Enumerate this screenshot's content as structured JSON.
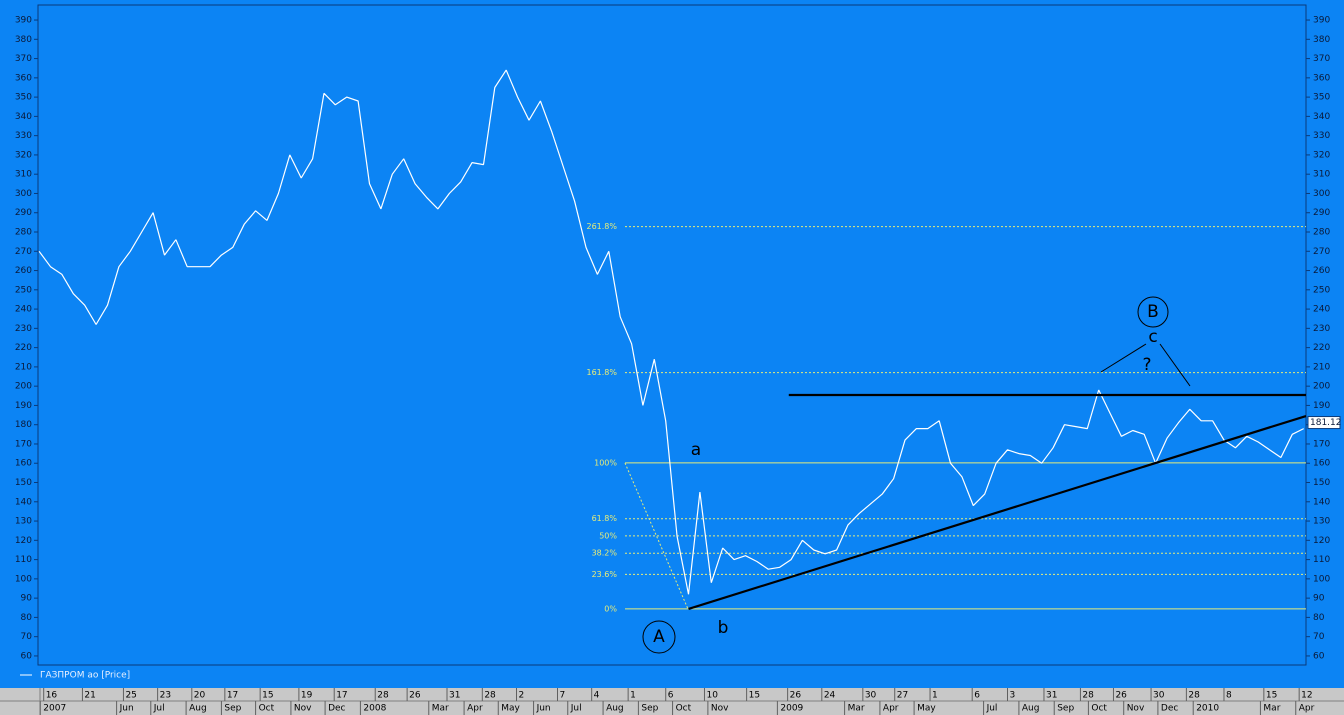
{
  "chart_data": {
    "type": "line",
    "x": [
      "2007-03-25",
      "2007-04-04",
      "2007-04-14",
      "2007-04-24",
      "2007-05-04",
      "2007-05-14",
      "2007-05-24",
      "2007-06-03",
      "2007-06-13",
      "2007-06-23",
      "2007-07-03",
      "2007-07-13",
      "2007-07-23",
      "2007-08-02",
      "2007-08-12",
      "2007-08-22",
      "2007-09-01",
      "2007-09-11",
      "2007-09-21",
      "2007-10-01",
      "2007-10-11",
      "2007-10-21",
      "2007-10-31",
      "2007-11-10",
      "2007-11-20",
      "2007-11-30",
      "2007-12-10",
      "2007-12-20",
      "2007-12-30",
      "2008-01-09",
      "2008-01-19",
      "2008-01-29",
      "2008-02-08",
      "2008-02-18",
      "2008-02-28",
      "2008-03-09",
      "2008-03-19",
      "2008-03-29",
      "2008-04-08",
      "2008-04-18",
      "2008-04-28",
      "2008-05-08",
      "2008-05-18",
      "2008-05-28",
      "2008-06-07",
      "2008-06-17",
      "2008-06-27",
      "2008-07-07",
      "2008-07-17",
      "2008-07-27",
      "2008-08-06",
      "2008-08-16",
      "2008-08-26",
      "2008-09-05",
      "2008-09-15",
      "2008-09-25",
      "2008-10-05",
      "2008-10-15",
      "2008-10-25",
      "2008-11-04",
      "2008-11-14",
      "2008-11-24",
      "2008-12-04",
      "2008-12-14",
      "2008-12-24",
      "2009-01-03",
      "2009-01-13",
      "2009-01-23",
      "2009-02-02",
      "2009-02-12",
      "2009-02-22",
      "2009-03-04",
      "2009-03-14",
      "2009-03-24",
      "2009-04-03",
      "2009-04-13",
      "2009-04-23",
      "2009-05-03",
      "2009-05-13",
      "2009-05-23",
      "2009-06-02",
      "2009-06-12",
      "2009-06-22",
      "2009-07-02",
      "2009-07-12",
      "2009-07-22",
      "2009-08-01",
      "2009-08-11",
      "2009-08-21",
      "2009-08-31",
      "2009-09-10",
      "2009-09-20",
      "2009-09-30",
      "2009-10-10",
      "2009-10-20",
      "2009-10-30",
      "2009-11-09",
      "2009-11-19",
      "2009-11-29",
      "2009-12-09",
      "2009-12-19",
      "2009-12-29",
      "2010-01-08",
      "2010-01-18",
      "2010-01-28",
      "2010-02-07",
      "2010-02-17",
      "2010-02-27",
      "2010-03-09",
      "2010-03-19",
      "2010-03-29",
      "2010-04-08"
    ],
    "series": [
      {
        "name": "ГАЗПРОМ ао [Price]",
        "color": "#ffffff",
        "values": [
          270,
          262,
          258,
          248,
          242,
          232,
          242,
          262,
          270,
          280,
          290,
          268,
          276,
          262,
          262,
          262,
          268,
          272,
          284,
          291,
          286,
          300,
          320,
          308,
          318,
          352,
          346,
          350,
          348,
          305,
          292,
          310,
          318,
          305,
          298,
          292,
          300,
          306,
          316,
          315,
          355,
          364,
          350,
          338,
          348,
          332,
          314,
          296,
          272,
          258,
          270,
          236,
          222,
          190,
          214,
          182,
          122,
          92,
          145,
          98,
          116,
          110,
          112,
          109,
          105,
          106,
          110,
          120,
          115,
          113,
          115,
          128,
          134,
          139,
          144,
          152,
          172,
          178,
          178,
          182,
          160,
          153,
          138,
          144,
          160,
          167,
          165,
          164,
          160,
          168,
          180,
          179,
          178,
          198,
          186,
          174,
          177,
          175,
          160,
          173,
          181,
          188,
          182,
          182,
          172,
          168,
          174,
          171,
          167,
          163,
          175,
          178
        ]
      }
    ],
    "xlim": [
      "2007-03-24",
      "2010-04-10"
    ],
    "ylim": [
      55.3,
      397.8
    ],
    "yticks": [
      60,
      70,
      80,
      90,
      100,
      110,
      120,
      130,
      140,
      150,
      160,
      170,
      180,
      190,
      200,
      210,
      220,
      230,
      240,
      250,
      260,
      270,
      280,
      290,
      300,
      310,
      320,
      330,
      340,
      350,
      360,
      370,
      380,
      390
    ],
    "xticks": [
      {
        "value": "2007-03-29",
        "label": "16"
      },
      {
        "value": "2007-05-02",
        "label": "21"
      },
      {
        "value": "2007-06-07",
        "label": "25"
      },
      {
        "value": "2007-07-07",
        "label": "23"
      },
      {
        "value": "2007-08-06",
        "label": "20"
      },
      {
        "value": "2007-09-04",
        "label": "17"
      },
      {
        "value": "2007-10-05",
        "label": "15"
      },
      {
        "value": "2007-11-08",
        "label": "19"
      },
      {
        "value": "2007-12-09",
        "label": "17"
      },
      {
        "value": "2008-01-14",
        "label": "28"
      },
      {
        "value": "2008-02-11",
        "label": "26"
      },
      {
        "value": "2008-03-17",
        "label": "31"
      },
      {
        "value": "2008-04-17",
        "label": "28"
      },
      {
        "value": "2008-05-17",
        "label": "2"
      },
      {
        "value": "2008-06-22",
        "label": "7"
      },
      {
        "value": "2008-07-22",
        "label": "4"
      },
      {
        "value": "2008-08-23",
        "label": "1"
      },
      {
        "value": "2008-09-25",
        "label": "6"
      },
      {
        "value": "2008-10-29",
        "label": "10"
      },
      {
        "value": "2008-12-05",
        "label": "15"
      },
      {
        "value": "2009-01-10",
        "label": "26"
      },
      {
        "value": "2009-02-09",
        "label": "24"
      },
      {
        "value": "2009-03-17",
        "label": "30"
      },
      {
        "value": "2009-04-14",
        "label": "27"
      },
      {
        "value": "2009-05-15",
        "label": "1"
      },
      {
        "value": "2009-06-21",
        "label": "6"
      },
      {
        "value": "2009-07-22",
        "label": "3"
      },
      {
        "value": "2009-08-23",
        "label": "31"
      },
      {
        "value": "2009-09-24",
        "label": "28"
      },
      {
        "value": "2009-10-23",
        "label": "26"
      },
      {
        "value": "2009-11-25",
        "label": "30"
      },
      {
        "value": "2009-12-26",
        "label": "28"
      },
      {
        "value": "2010-01-28",
        "label": "8"
      },
      {
        "value": "2010-03-04",
        "label": "15"
      },
      {
        "value": "2010-04-04",
        "label": "12"
      }
    ],
    "month_ticks": [
      {
        "value": "2007-03-26",
        "label": "2007"
      },
      {
        "value": "2007-06-01",
        "label": "Jun"
      },
      {
        "value": "2007-07-01",
        "label": "Jul"
      },
      {
        "value": "2007-08-01",
        "label": "Aug"
      },
      {
        "value": "2007-09-01",
        "label": "Sep"
      },
      {
        "value": "2007-10-01",
        "label": "Oct"
      },
      {
        "value": "2007-11-01",
        "label": "Nov"
      },
      {
        "value": "2007-12-01",
        "label": "Dec"
      },
      {
        "value": "2008-01-01",
        "label": "2008"
      },
      {
        "value": "2008-03-01",
        "label": "Mar"
      },
      {
        "value": "2008-04-01",
        "label": "Apr"
      },
      {
        "value": "2008-05-01",
        "label": "May"
      },
      {
        "value": "2008-06-01",
        "label": "Jun"
      },
      {
        "value": "2008-07-01",
        "label": "Jul"
      },
      {
        "value": "2008-08-01",
        "label": "Aug"
      },
      {
        "value": "2008-09-01",
        "label": "Sep"
      },
      {
        "value": "2008-10-01",
        "label": "Oct"
      },
      {
        "value": "2008-11-01",
        "label": "Nov"
      },
      {
        "value": "2009-01-01",
        "label": "2009"
      },
      {
        "value": "2009-03-01",
        "label": "Mar"
      },
      {
        "value": "2009-04-01",
        "label": "Apr"
      },
      {
        "value": "2009-05-01",
        "label": "May"
      },
      {
        "value": "2009-07-01",
        "label": "Jul"
      },
      {
        "value": "2009-08-01",
        "label": "Aug"
      },
      {
        "value": "2009-09-01",
        "label": "Sep"
      },
      {
        "value": "2009-10-01",
        "label": "Oct"
      },
      {
        "value": "2009-11-01",
        "label": "Nov"
      },
      {
        "value": "2009-12-01",
        "label": "Dec"
      },
      {
        "value": "2010-01-01",
        "label": "2010"
      },
      {
        "value": "2010-03-01",
        "label": "Mar"
      },
      {
        "value": "2010-04-01",
        "label": "Apr"
      }
    ],
    "last_price": 181.12,
    "fibonacci": [
      {
        "value": 84.4,
        "label": "0%",
        "dashed": false
      },
      {
        "value": 102.3,
        "label": "23.6%",
        "dashed": true
      },
      {
        "value": 113.3,
        "label": "38.2%",
        "dashed": true
      },
      {
        "value": 122.3,
        "label": "50%",
        "dashed": true
      },
      {
        "value": 131.2,
        "label": "61.8%",
        "dashed": true
      },
      {
        "value": 160.2,
        "label": "100%",
        "dashed": false
      },
      {
        "value": 207,
        "label": "161.8%",
        "dashed": true
      },
      {
        "value": 282.8,
        "label": "261.8%",
        "dashed": true
      }
    ],
    "fib_color": "#e6ec7a",
    "trendlines": [
      {
        "x": [
          "2009-01-11",
          "2010-04-10"
        ],
        "y": [
          195.4,
          195.4
        ],
        "color": "#000000"
      },
      {
        "x": [
          "2008-10-15",
          "2010-04-10"
        ],
        "y": [
          84.4,
          184.5
        ],
        "color": "#000000"
      }
    ],
    "annotations": [
      "A",
      "b",
      "a",
      "B",
      "c",
      "?"
    ]
  }
}
